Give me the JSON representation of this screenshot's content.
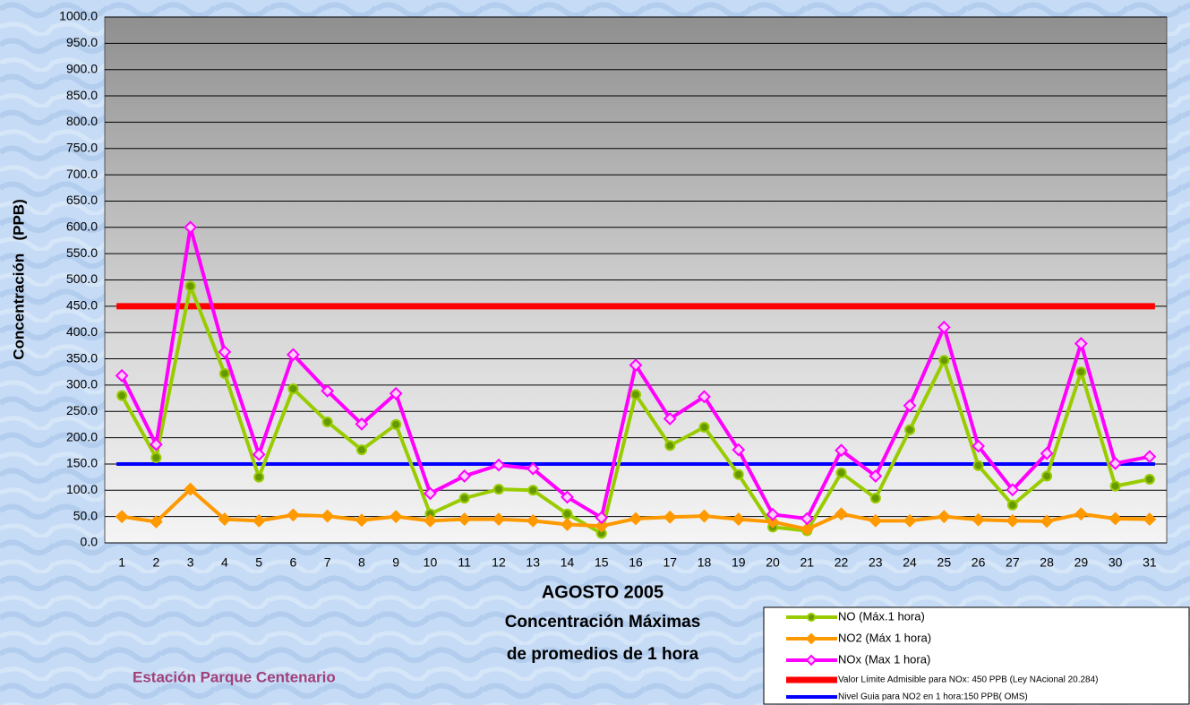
{
  "chart_data": {
    "type": "line",
    "title": "AGOSTO 2005",
    "subtitle": [
      "Concentración Máximas",
      "de promedios de 1 hora"
    ],
    "station": "Estación Parque Centenario",
    "y_label": "Concentración   (PPB)",
    "categories": [
      "1",
      "2",
      "3",
      "4",
      "5",
      "6",
      "7",
      "8",
      "9",
      "10",
      "11",
      "12",
      "13",
      "14",
      "15",
      "16",
      "17",
      "18",
      "19",
      "20",
      "21",
      "22",
      "23",
      "24",
      "25",
      "26",
      "27",
      "28",
      "29",
      "30",
      "31"
    ],
    "series": [
      {
        "name": "NO (Máx.1 hora)",
        "color": "#99cc00",
        "marker": "circle",
        "marker_fill": "#669900",
        "values": [
          280,
          162,
          488,
          322,
          125,
          293,
          230,
          177,
          225,
          55,
          85,
          102,
          100,
          55,
          18,
          282,
          185,
          220,
          130,
          30,
          23,
          133,
          85,
          215,
          347,
          147,
          72,
          127,
          325,
          108,
          121
        ]
      },
      {
        "name": "NO2 (Máx 1 hora)",
        "color": "#ff9900",
        "marker": "diamond",
        "marker_fill": "#ff9900",
        "values": [
          50,
          40,
          102,
          45,
          42,
          53,
          51,
          43,
          50,
          42,
          45,
          45,
          42,
          35,
          32,
          46,
          49,
          51,
          45,
          40,
          26,
          55,
          42,
          42,
          50,
          44,
          42,
          41,
          55,
          46,
          45
        ]
      },
      {
        "name": "NOx (Max 1 hora)",
        "color": "#ff00ff",
        "marker": "diamond",
        "marker_fill": "#ffccff",
        "values": [
          318,
          187,
          600,
          363,
          168,
          358,
          289,
          226,
          284,
          94,
          127,
          148,
          141,
          87,
          48,
          338,
          236,
          278,
          177,
          54,
          46,
          176,
          127,
          261,
          410,
          184,
          101,
          170,
          379,
          151,
          164
        ]
      }
    ],
    "reference_lines": [
      {
        "name": "Valor Límite Admisible para NOx: 450 PPB (Ley NAcional 20.284)",
        "value": 450,
        "color": "#ff0000"
      },
      {
        "name": "Nivel Guia para NO2 en 1 hora:150 PPB( OMS)",
        "value": 150,
        "color": "#0000ff"
      }
    ],
    "ylim": [
      0,
      1000
    ],
    "yticks": [
      {
        "value": 0,
        "label": "0.0"
      },
      {
        "value": 50,
        "label": "50.0"
      },
      {
        "value": 100,
        "label": "100.0"
      },
      {
        "value": 150,
        "label": "150.0"
      },
      {
        "value": 200,
        "label": "200.0"
      },
      {
        "value": 250,
        "label": "250.0"
      },
      {
        "value": 300,
        "label": "300.0"
      },
      {
        "value": 350,
        "label": "350.0"
      },
      {
        "value": 400,
        "label": "400.0"
      },
      {
        "value": 450,
        "label": "450.0"
      },
      {
        "value": 500,
        "label": "500.0"
      },
      {
        "value": 550,
        "label": "550.0"
      },
      {
        "value": 600,
        "label": "600.0"
      },
      {
        "value": 650,
        "label": "650.0"
      },
      {
        "value": 700,
        "label": "700.0"
      },
      {
        "value": 750,
        "label": "750.0"
      },
      {
        "value": 800,
        "label": "800.0"
      },
      {
        "value": 850,
        "label": "850.0"
      },
      {
        "value": 900,
        "label": "900.0"
      },
      {
        "value": 950,
        "label": "950.0"
      },
      {
        "value": 1000,
        "label": "1000.0"
      }
    ],
    "grid": true
  }
}
